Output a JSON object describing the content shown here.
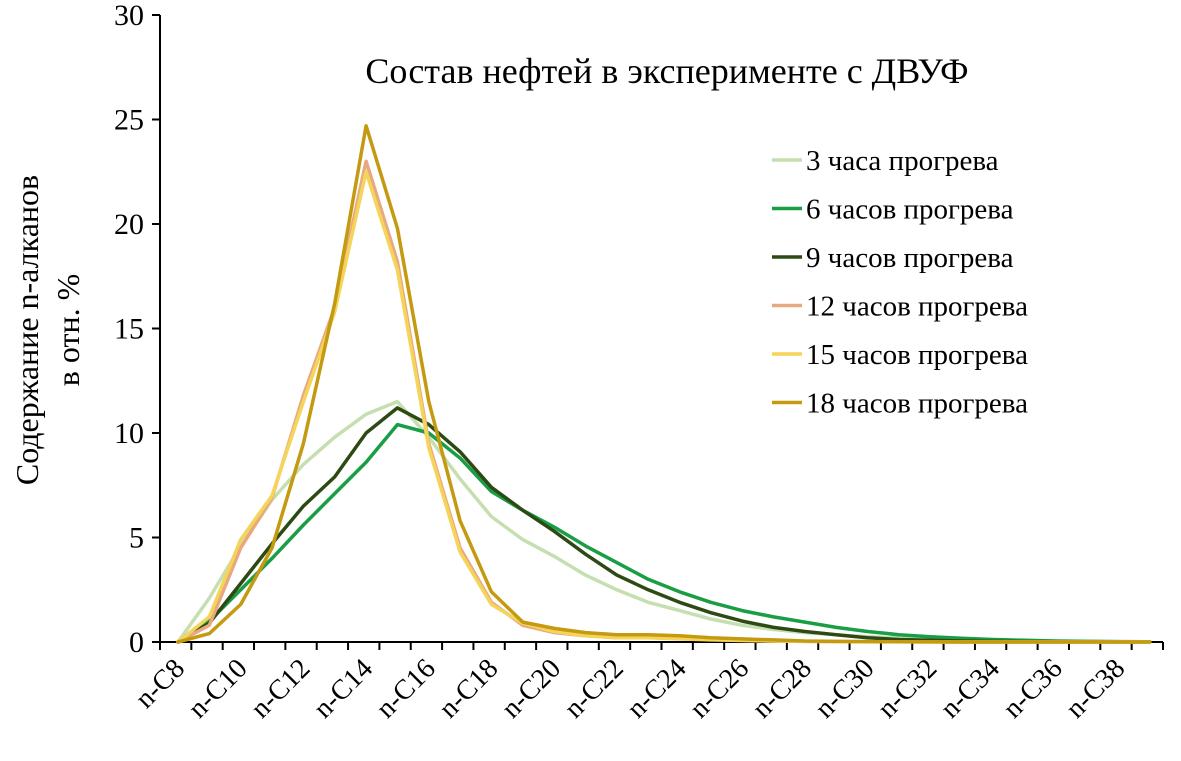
{
  "chart_data": {
    "type": "line",
    "title": "Состав нефтей в эксперименте с ДВУФ",
    "ylabel_lines": [
      "Содержание  n-алканов",
      "в отн. %"
    ],
    "xlabel": "",
    "ylim": [
      0,
      30
    ],
    "yticks": [
      "0",
      "5",
      "10",
      "15",
      "20",
      "25",
      "30"
    ],
    "categories": [
      "n-C8",
      "n-C9",
      "n-C10",
      "n-C11",
      "n-C12",
      "n-C13",
      "n-C14",
      "n-C15",
      "n-C16",
      "n-C17",
      "n-C18",
      "n-C19",
      "n-C20",
      "n-C21",
      "n-C22",
      "n-C23",
      "n-C24",
      "n-C25",
      "n-C26",
      "n-C27",
      "n-C28",
      "n-C29",
      "n-C30",
      "n-C31",
      "n-C32",
      "n-C33",
      "n-C34",
      "n-C35",
      "n-C36",
      "n-C37",
      "n-C38",
      "n-C39"
    ],
    "xtick_labels": [
      "n-C8",
      "n-C10",
      "n-C12",
      "n-C14",
      "n-C16",
      "n-C18",
      "n-C20",
      "n-C22",
      "n-C24",
      "n-C26",
      "n-C28",
      "n-C30",
      "n-C32",
      "n-C34",
      "n-C36",
      "n-C38"
    ],
    "legend_position": "top-right",
    "grid": false,
    "series": [
      {
        "name": "3 часа прогрева",
        "color": "#c5dfb0",
        "values": [
          0,
          2.1,
          4.6,
          6.8,
          8.5,
          9.8,
          10.9,
          11.5,
          9.8,
          7.8,
          6.0,
          4.9,
          4.1,
          3.2,
          2.5,
          1.9,
          1.5,
          1.1,
          0.8,
          0.6,
          0.45,
          0.35,
          0.25,
          0.2,
          0.15,
          0.1,
          0.08,
          0.05,
          0.04,
          0.03,
          0.02,
          0.01
        ]
      },
      {
        "name": "6 часов прогрева",
        "color": "#1a9e45",
        "values": [
          0,
          1.0,
          2.5,
          4.0,
          5.6,
          7.1,
          8.6,
          10.4,
          10.0,
          8.8,
          7.2,
          6.3,
          5.5,
          4.6,
          3.8,
          3.0,
          2.4,
          1.9,
          1.5,
          1.2,
          0.95,
          0.7,
          0.5,
          0.35,
          0.25,
          0.18,
          0.12,
          0.08,
          0.05,
          0.03,
          0.02,
          0.01
        ]
      },
      {
        "name": "9 часов прогрева",
        "color": "#2d4a14",
        "values": [
          0,
          0.9,
          2.8,
          4.7,
          6.5,
          7.9,
          10.0,
          11.2,
          10.4,
          9.1,
          7.4,
          6.3,
          5.3,
          4.2,
          3.2,
          2.5,
          1.9,
          1.4,
          1.0,
          0.7,
          0.5,
          0.35,
          0.2,
          0.12,
          0.08,
          0.05,
          0.03,
          0.02,
          0.01,
          0.01,
          0.0,
          0.0
        ]
      },
      {
        "name": "12 часов прогрева",
        "color": "#e8a880",
        "values": [
          0,
          0.8,
          4.5,
          6.9,
          11.8,
          16.0,
          23.0,
          18.2,
          9.5,
          4.5,
          1.9,
          0.8,
          0.45,
          0.3,
          0.2,
          0.2,
          0.2,
          0.12,
          0.08,
          0.05,
          0.03,
          0.02,
          0.01,
          0.01,
          0.0,
          0.0,
          0.0,
          0.0,
          0.0,
          0.0,
          0.0,
          0.0
        ]
      },
      {
        "name": "15 часов прогрева",
        "color": "#f5d45a",
        "values": [
          0,
          1.2,
          4.9,
          7.0,
          11.5,
          15.8,
          22.5,
          17.8,
          9.3,
          4.3,
          1.8,
          0.9,
          0.5,
          0.3,
          0.2,
          0.2,
          0.15,
          0.1,
          0.07,
          0.05,
          0.03,
          0.02,
          0.01,
          0.01,
          0.0,
          0.0,
          0.0,
          0.0,
          0.0,
          0.0,
          0.0,
          0.0
        ]
      },
      {
        "name": "18 часов прогрева",
        "color": "#c49a10",
        "values": [
          0,
          0.4,
          1.8,
          4.5,
          9.5,
          16.2,
          24.7,
          19.8,
          11.5,
          5.8,
          2.4,
          0.95,
          0.65,
          0.45,
          0.35,
          0.35,
          0.3,
          0.2,
          0.15,
          0.1,
          0.05,
          0.03,
          0.02,
          0.01,
          0.01,
          0.0,
          0.0,
          0.0,
          0.0,
          0.0,
          0.0,
          0.0
        ]
      }
    ]
  }
}
